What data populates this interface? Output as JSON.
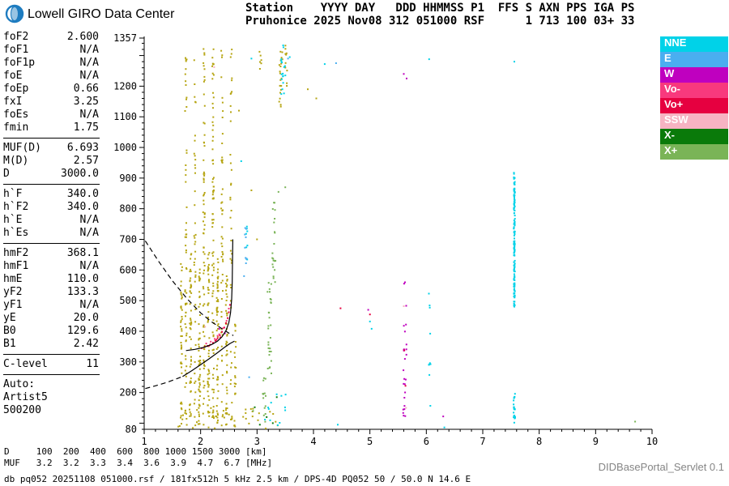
{
  "header": {
    "brand": "Lowell GIRO Data Center",
    "station_line1": "Station    YYYY DAY   DDD HHMMSS P1  FFS S AXN PPS IGA PS",
    "station_line2": "Pruhonice 2025 Nov08 312 051000 RSF      1 713 100 03+ 33"
  },
  "params": {
    "groups": [
      {
        "rows": [
          [
            "foF2",
            "2.600"
          ],
          [
            "foF1",
            "N/A"
          ],
          [
            "foF1p",
            "N/A"
          ],
          [
            "foE",
            "N/A"
          ],
          [
            "foEp",
            "0.66"
          ],
          [
            "fxI",
            "3.25"
          ],
          [
            "foEs",
            "N/A"
          ],
          [
            "fmin",
            "1.75"
          ]
        ]
      },
      {
        "rows": [
          [
            "MUF(D)",
            "6.693"
          ],
          [
            "M(D)",
            "2.57"
          ],
          [
            "D",
            "3000.0"
          ]
        ]
      },
      {
        "rows": [
          [
            "h`F",
            "340.0"
          ],
          [
            "h`F2",
            "340.0"
          ],
          [
            "h`E",
            "N/A"
          ],
          [
            "h`Es",
            "N/A"
          ]
        ]
      },
      {
        "rows": [
          [
            "hmF2",
            "368.1"
          ],
          [
            "hmF1",
            "N/A"
          ],
          [
            "hmE",
            "110.0"
          ],
          [
            "yF2",
            "133.3"
          ],
          [
            "yF1",
            "N/A"
          ],
          [
            "yE",
            "20.0"
          ],
          [
            "B0",
            "129.6"
          ],
          [
            "B1",
            "2.42"
          ]
        ]
      },
      {
        "rows": [
          [
            "C-level",
            "11"
          ]
        ]
      },
      {
        "rows": [
          [
            "Auto:",
            ""
          ],
          [
            "Artist5",
            ""
          ],
          [
            "500200",
            ""
          ]
        ]
      }
    ]
  },
  "footer": {
    "d_line": "D     100  200  400  600  800 1000 1500 3000 [km]",
    "muf_line": "MUF   3.2  3.2  3.3  3.4  3.6  3.9  4.7  6.7 [MHz]",
    "info_line": "db pq052 20251108 051000.rsf / 181fx512h 5 kHz 2.5 km / DPS-4D PQ052 50 / 50.0 N 14.6 E",
    "servlet": "DIDBasePortal_Servlet 0.1"
  },
  "chart_data": {
    "type": "scatter",
    "title": "Pruhonice ionogram 2025 Nov08 051000",
    "xlabel": "[MHz]",
    "ylabel": "[km]",
    "axes": {
      "x": {
        "min": 1,
        "max": 10,
        "labels": [
          1,
          2,
          3,
          4,
          5,
          6,
          7,
          8,
          9,
          10
        ],
        "minor_step": 0.2
      },
      "y": {
        "min": 80,
        "max": 1357,
        "labels": [
          1357,
          1200,
          1100,
          1000,
          900,
          800,
          700,
          600,
          500,
          400,
          300,
          200,
          80
        ],
        "minor_step": 20
      }
    },
    "colors": {
      "Y": "#b6a512",
      "NNE": "#00d2e8",
      "E": "#4aaef0",
      "W": "#bf00bf",
      "Vo-": "#f8397d",
      "Vo+": "#e60040",
      "SSW": "#f7b3c2",
      "X-": "#0a7a0a",
      "X+": "#7ab457"
    },
    "legend": [
      "NNE",
      "E",
      "W",
      "Vo-",
      "Vo+",
      "SSW",
      "X-",
      "X+"
    ],
    "noise_columns": [
      {
        "f": 1.66,
        "w": 0.03,
        "h1": 85,
        "h2": 640,
        "n": 40,
        "c": "Y"
      },
      {
        "f": 1.74,
        "w": 0.03,
        "h1": 85,
        "h2": 1320,
        "n": 60,
        "c": "Y"
      },
      {
        "f": 1.82,
        "w": 0.03,
        "h1": 85,
        "h2": 660,
        "n": 50,
        "c": "Y"
      },
      {
        "f": 1.9,
        "w": 0.03,
        "h1": 85,
        "h2": 1320,
        "n": 42,
        "c": "Y"
      },
      {
        "f": 1.98,
        "w": 0.03,
        "h1": 85,
        "h2": 620,
        "n": 55,
        "c": "Y"
      },
      {
        "f": 2.06,
        "w": 0.03,
        "h1": 85,
        "h2": 1325,
        "n": 75,
        "c": "Y"
      },
      {
        "f": 2.14,
        "w": 0.03,
        "h1": 85,
        "h2": 660,
        "n": 50,
        "c": "Y"
      },
      {
        "f": 2.22,
        "w": 0.03,
        "h1": 88,
        "h2": 1325,
        "n": 80,
        "c": "Y"
      },
      {
        "f": 2.3,
        "w": 0.03,
        "h1": 85,
        "h2": 640,
        "n": 55,
        "c": "Y"
      },
      {
        "f": 2.38,
        "w": 0.03,
        "h1": 85,
        "h2": 1320,
        "n": 55,
        "c": "Y"
      },
      {
        "f": 2.46,
        "w": 0.03,
        "h1": 85,
        "h2": 580,
        "n": 45,
        "c": "Y"
      },
      {
        "f": 2.54,
        "w": 0.03,
        "h1": 85,
        "h2": 1320,
        "n": 40,
        "c": "Y"
      },
      {
        "f": 2.61,
        "w": 0.03,
        "h1": 85,
        "h2": 430,
        "n": 22,
        "c": "Y"
      },
      {
        "f": 2.5,
        "w": 1.8,
        "h1": 82,
        "h2": 150,
        "n": 40,
        "c": "Y"
      },
      {
        "f": 3.42,
        "w": 0.06,
        "h1": 1130,
        "h2": 1335,
        "n": 20,
        "c": "Y"
      },
      {
        "f": 3.52,
        "w": 0.05,
        "h1": 1150,
        "h2": 1335,
        "n": 10,
        "c": "Y"
      },
      {
        "f": 3.06,
        "w": 0.04,
        "h1": 1240,
        "h2": 1330,
        "n": 6,
        "c": "Y"
      },
      {
        "f": 7.56,
        "w": 0.02,
        "h1": 480,
        "h2": 930,
        "n": 150,
        "c": "NNE"
      },
      {
        "f": 7.56,
        "w": 0.03,
        "h1": 85,
        "h2": 200,
        "n": 22,
        "c": "NNE"
      },
      {
        "f": 3.47,
        "w": 0.08,
        "h1": 1140,
        "h2": 1335,
        "n": 18,
        "c": "NNE"
      },
      {
        "f": 6.06,
        "w": 0.03,
        "h1": 95,
        "h2": 545,
        "n": 10,
        "c": "NNE"
      },
      {
        "f": 3.3,
        "w": 0.5,
        "h1": 85,
        "h2": 210,
        "n": 12,
        "c": "NNE"
      },
      {
        "f": 2.82,
        "w": 0.05,
        "h1": 600,
        "h2": 800,
        "n": 7,
        "c": "NNE"
      },
      {
        "f": 5.62,
        "w": 0.06,
        "h1": 90,
        "h2": 575,
        "n": 26,
        "c": "W"
      },
      {
        "f": 3.22,
        "w": 0.07,
        "h1": 260,
        "h2": 560,
        "n": 28,
        "c": "X+"
      },
      {
        "f": 3.3,
        "w": 0.06,
        "h1": 560,
        "h2": 830,
        "n": 22,
        "c": "X+"
      },
      {
        "f": 3.13,
        "w": 0.06,
        "h1": 90,
        "h2": 260,
        "n": 14,
        "c": "X+"
      },
      {
        "f": 2.8,
        "w": 0.04,
        "h1": 620,
        "h2": 810,
        "n": 9,
        "c": "E"
      }
    ],
    "points": [
      [
        2.02,
        345,
        "Vo+"
      ],
      [
        2.07,
        349,
        "Vo+"
      ],
      [
        2.12,
        352,
        "Vo+"
      ],
      [
        2.17,
        356,
        "Vo+"
      ],
      [
        2.22,
        362,
        "Vo+"
      ],
      [
        2.26,
        369,
        "Vo+"
      ],
      [
        2.3,
        377,
        "Vo+"
      ],
      [
        2.34,
        387,
        "Vo+"
      ],
      [
        2.38,
        398,
        "Vo+"
      ],
      [
        2.42,
        412,
        "Vo+"
      ],
      [
        2.45,
        426,
        "Vo+"
      ],
      [
        2.48,
        443,
        "Vo+"
      ],
      [
        2.5,
        462,
        "Vo+"
      ],
      [
        2.52,
        486,
        "Vo+"
      ],
      [
        2.35,
        380,
        "Vo+"
      ],
      [
        2.28,
        372,
        "Vo+"
      ],
      [
        5.63,
        222,
        "Vo+"
      ],
      [
        5.61,
        338,
        "Vo+"
      ],
      [
        5.0,
        455,
        "Vo+"
      ],
      [
        4.48,
        475,
        "Vo+"
      ],
      [
        2.1,
        360,
        "Vo-"
      ],
      [
        2.18,
        366,
        "Vo-"
      ],
      [
        2.25,
        375,
        "Vo-"
      ],
      [
        2.33,
        390,
        "Vo-"
      ],
      [
        2.4,
        410,
        "Vo-"
      ],
      [
        2.46,
        434,
        "Vo-"
      ],
      [
        2.5,
        474,
        "Vo-"
      ],
      [
        2.3,
        385,
        "Vo-"
      ],
      [
        2.15,
        352,
        "Vo-"
      ],
      [
        2.24,
        1262,
        "SSW"
      ],
      [
        5.64,
        150,
        "SSW"
      ],
      [
        5.6,
        482,
        "SSW"
      ],
      [
        2.08,
        415,
        "SSW"
      ],
      [
        3.17,
        120,
        "X-"
      ],
      [
        3.28,
        100,
        "X-"
      ],
      [
        3.05,
        95,
        "X-"
      ],
      [
        2.96,
        152,
        "X-"
      ],
      [
        3.35,
        185,
        "X-"
      ],
      [
        9.7,
        105,
        "X+"
      ],
      [
        3.5,
        870,
        "X+"
      ],
      [
        2.93,
        140,
        "X+"
      ],
      [
        3.38,
        855,
        "X+"
      ],
      [
        2.33,
        408,
        "W"
      ],
      [
        2.43,
        393,
        "W"
      ],
      [
        5.6,
        1240,
        "W"
      ],
      [
        5.65,
        1225,
        "W"
      ],
      [
        4.97,
        470,
        "W"
      ],
      [
        6.3,
        122,
        "W"
      ],
      [
        2.86,
        250,
        "E"
      ],
      [
        3.55,
        1290,
        "E"
      ],
      [
        2.77,
        580,
        "E"
      ],
      [
        4.4,
        1275,
        "E"
      ],
      [
        7.56,
        1280,
        "NNE"
      ],
      [
        6.05,
        1288,
        "NNE"
      ],
      [
        5.0,
        432,
        "NNE"
      ],
      [
        5.03,
        408,
        "NNE"
      ],
      [
        4.43,
        95,
        "NNE"
      ],
      [
        6.32,
        86,
        "NNE"
      ],
      [
        2.9,
        1290,
        "NNE"
      ],
      [
        4.2,
        1272,
        "NNE"
      ],
      [
        2.72,
        955,
        "NNE"
      ],
      [
        3.58,
        1295,
        "NNE"
      ],
      [
        3.9,
        1190,
        "Y"
      ],
      [
        4.05,
        1160,
        "Y"
      ],
      [
        2.9,
        860,
        "Y"
      ],
      [
        3.0,
        700,
        "Y"
      ],
      [
        2.68,
        1120,
        "Y"
      ]
    ],
    "curves": [
      {
        "name": "topside-profile-dashed",
        "dashed": true,
        "pts": [
          [
            1.02,
            695
          ],
          [
            1.25,
            630
          ],
          [
            1.5,
            565
          ],
          [
            1.75,
            508
          ],
          [
            2.0,
            460
          ],
          [
            2.2,
            430
          ],
          [
            2.38,
            408
          ],
          [
            2.5,
            394
          ],
          [
            2.58,
            386
          ]
        ]
      },
      {
        "name": "sub-fmin-profile-dashed",
        "dashed": true,
        "pts": [
          [
            1.02,
            213
          ],
          [
            1.2,
            222
          ],
          [
            1.4,
            233
          ],
          [
            1.55,
            243
          ],
          [
            1.68,
            252
          ]
        ]
      },
      {
        "name": "bottomside-profile",
        "dashed": false,
        "pts": [
          [
            1.68,
            252
          ],
          [
            1.85,
            272
          ],
          [
            2.0,
            291
          ],
          [
            2.15,
            310
          ],
          [
            2.3,
            330
          ],
          [
            2.42,
            347
          ],
          [
            2.52,
            360
          ],
          [
            2.6,
            368
          ]
        ]
      },
      {
        "name": "f-trace-fit",
        "dashed": false,
        "pts": [
          [
            1.74,
            337
          ],
          [
            1.9,
            341
          ],
          [
            2.05,
            347
          ],
          [
            2.2,
            357
          ],
          [
            2.3,
            368
          ],
          [
            2.38,
            382
          ],
          [
            2.45,
            402
          ],
          [
            2.5,
            428
          ],
          [
            2.53,
            460
          ],
          [
            2.55,
            505
          ],
          [
            2.56,
            560
          ],
          [
            2.565,
            625
          ],
          [
            2.57,
            700
          ]
        ]
      }
    ]
  }
}
